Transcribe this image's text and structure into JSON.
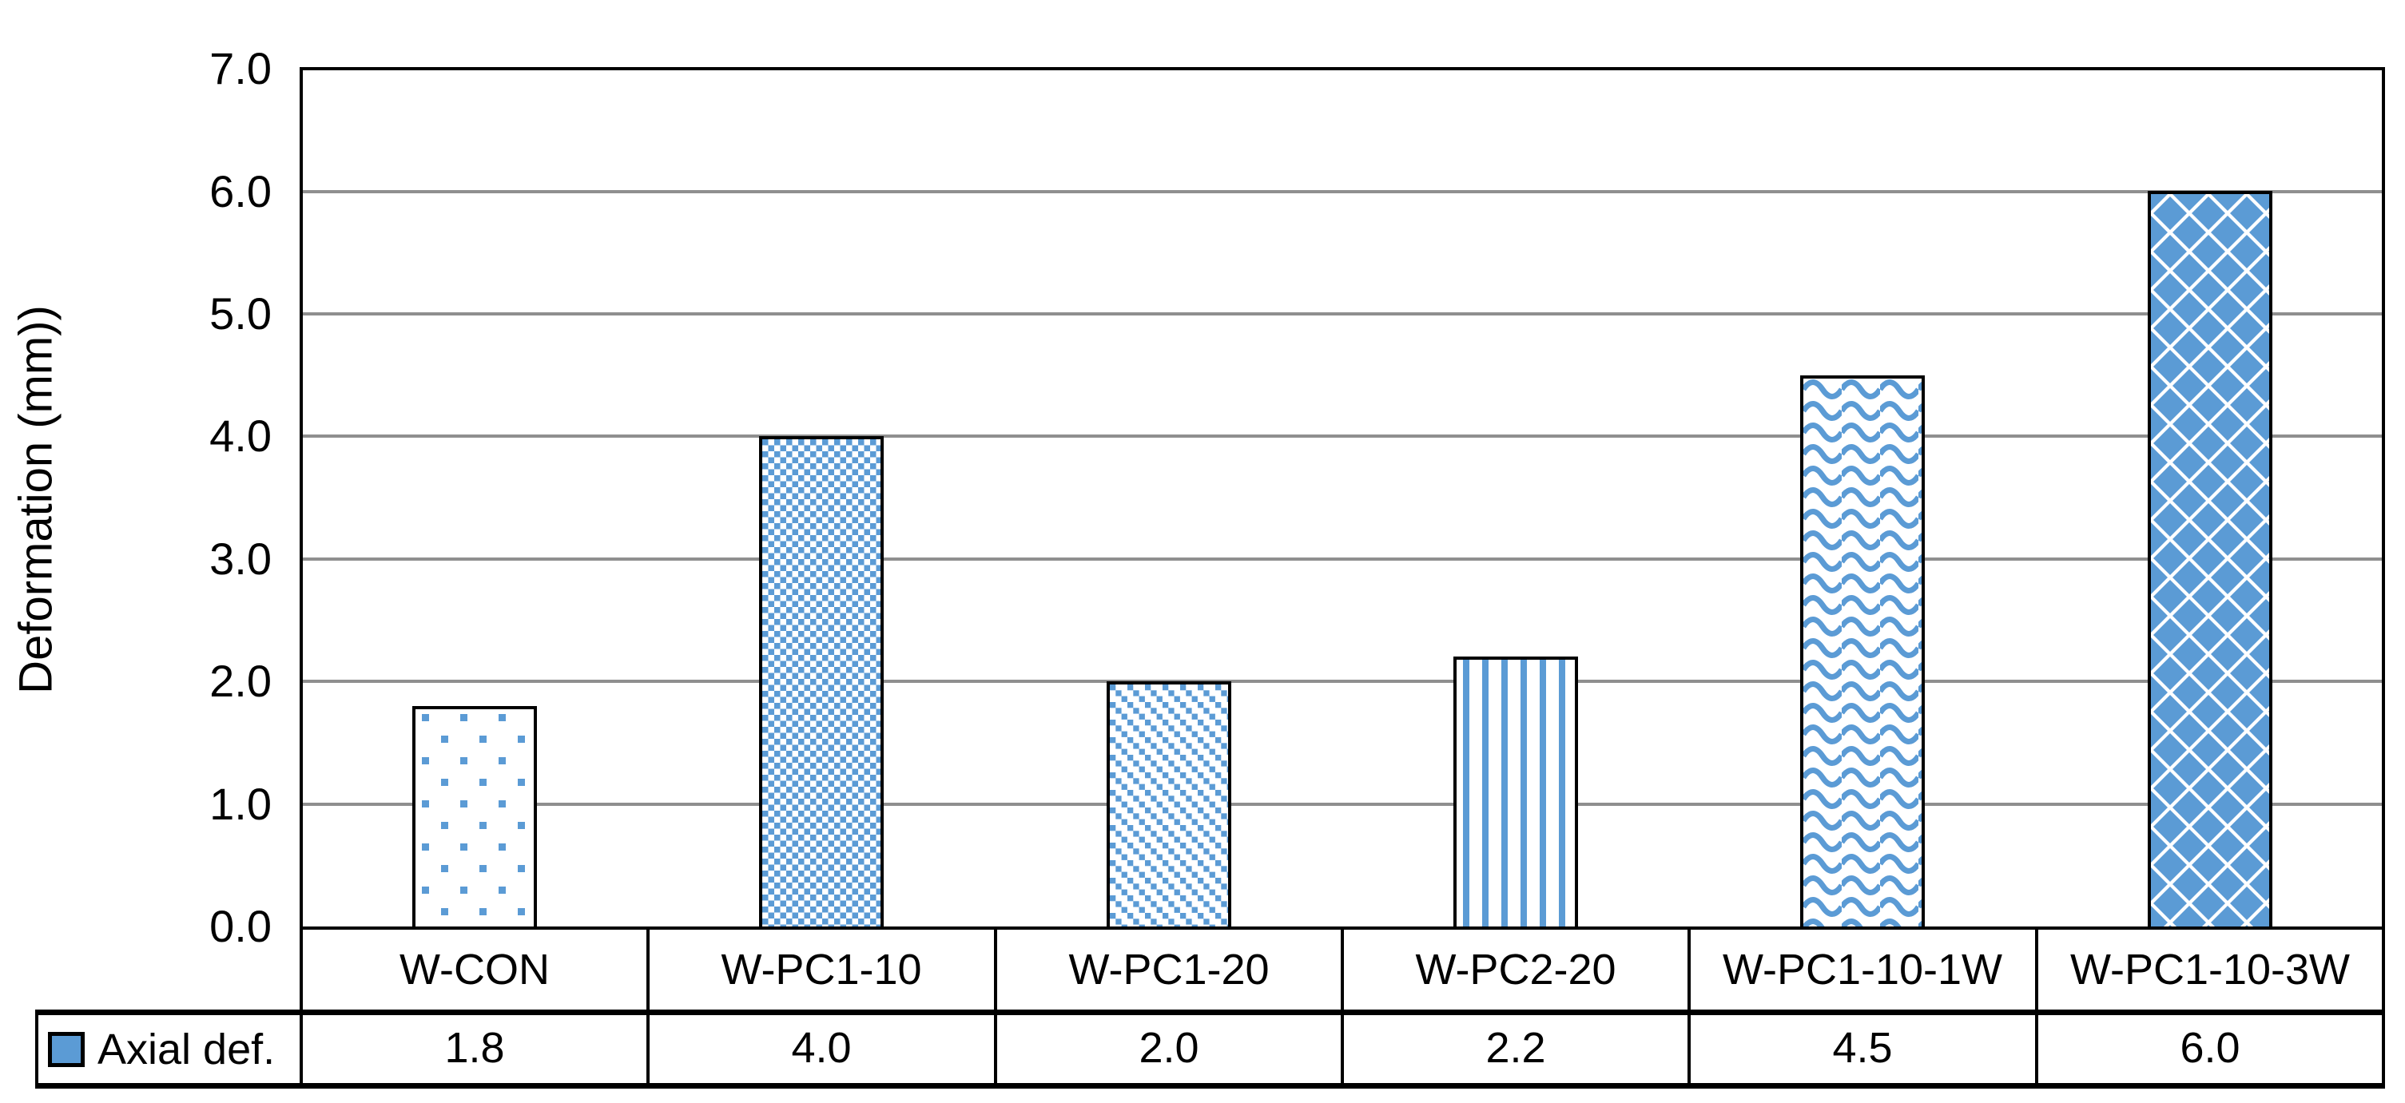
{
  "chart_data": {
    "type": "bar",
    "title": "",
    "ylabel": "Deformation (mm))",
    "xlabel": "",
    "ylim": [
      0.0,
      7.0
    ],
    "ytick_step": 1.0,
    "yticks": [
      "7.0",
      "6.0",
      "5.0",
      "4.0",
      "3.0",
      "2.0",
      "1.0",
      "0.0"
    ],
    "grid": true,
    "legend_position": "bottom-left-table-cell",
    "categories": [
      "W-CON",
      "W-PC1-10",
      "W-PC1-20",
      "W-PC2-20",
      "W-PC1-10-1W",
      "W-PC1-10-3W"
    ],
    "series": [
      {
        "name": "Axial def.",
        "values": [
          1.8,
          4.0,
          2.0,
          2.2,
          4.5,
          6.0
        ]
      }
    ],
    "values": [
      1.8,
      4.0,
      2.0,
      2.2,
      4.5,
      6.0
    ],
    "bar_patterns": [
      "dotted-squares",
      "checkerboard",
      "diagonal-squares",
      "vertical-stripes",
      "horizontal-waves",
      "diamonds"
    ],
    "colors": {
      "pattern_fill": "#5B9BD5",
      "bar_border": "#000000",
      "gridline": "#8f8f8f",
      "axis_line": "#000000",
      "text": "#000000",
      "background": "#ffffff"
    }
  },
  "table": {
    "row_label": "Axial def.",
    "values": [
      "1.8",
      "4.0",
      "2.0",
      "2.2",
      "4.5",
      "6.0"
    ]
  }
}
